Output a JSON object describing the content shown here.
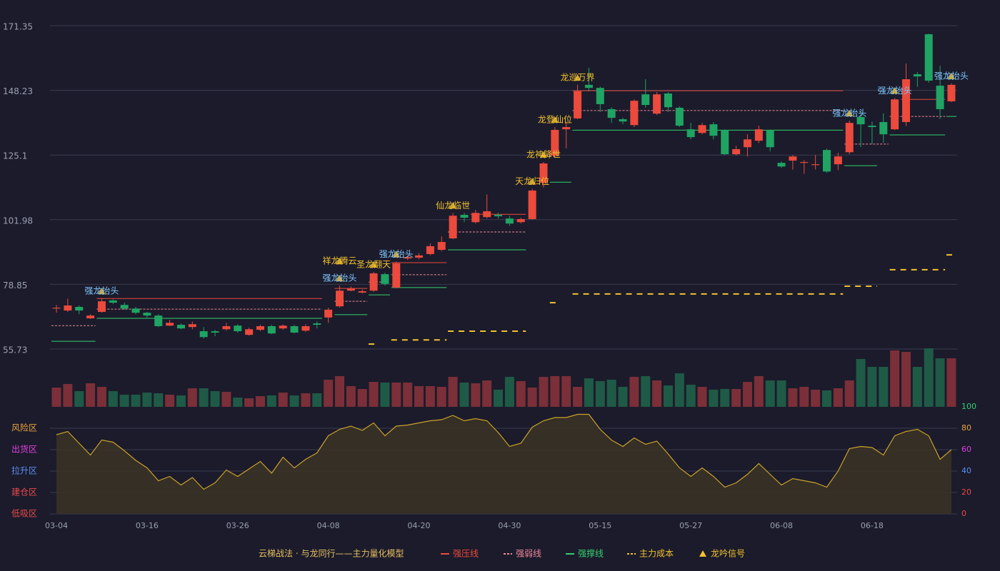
{
  "chart_data": [
    {
      "type": "candlestick",
      "ylim": [
        55.73,
        171.35
      ],
      "yticks": [
        55.73,
        78.85,
        101.98,
        125.1,
        148.23,
        171.35
      ],
      "grid": true,
      "up_color": "#eb4a3d",
      "down_color": "#1fa463",
      "caption": "云梯战法 · 与龙同行——主力量化模型",
      "ohlc": [
        [
          70.2,
          71.5,
          68.7,
          70.5
        ],
        [
          69.5,
          73.8,
          69.0,
          71.3
        ],
        [
          70.8,
          71.3,
          68.2,
          69.5
        ],
        [
          66.7,
          68.2,
          66.5,
          67.7
        ],
        [
          69.0,
          73.8,
          68.7,
          72.8
        ],
        [
          73.1,
          73.5,
          71.8,
          72.3
        ],
        [
          71.5,
          72.3,
          69.8,
          70.2
        ],
        [
          70.2,
          70.8,
          68.2,
          68.7
        ],
        [
          68.7,
          69.0,
          66.9,
          67.7
        ],
        [
          67.7,
          68.2,
          63.6,
          63.9
        ],
        [
          64.1,
          66.2,
          63.9,
          65.1
        ],
        [
          64.4,
          64.9,
          62.8,
          63.1
        ],
        [
          63.6,
          65.6,
          62.8,
          64.6
        ],
        [
          62.1,
          63.6,
          59.5,
          60.0
        ],
        [
          62.1,
          62.6,
          60.3,
          61.6
        ],
        [
          62.8,
          65.1,
          62.3,
          63.9
        ],
        [
          64.1,
          64.6,
          61.6,
          62.1
        ],
        [
          60.8,
          63.4,
          60.5,
          62.8
        ],
        [
          62.6,
          64.4,
          62.1,
          63.9
        ],
        [
          63.9,
          64.4,
          61.0,
          61.3
        ],
        [
          63.1,
          64.6,
          62.6,
          64.1
        ],
        [
          63.9,
          64.4,
          61.3,
          61.6
        ],
        [
          62.3,
          64.6,
          61.8,
          63.9
        ],
        [
          64.9,
          65.6,
          63.1,
          64.4
        ],
        [
          67.0,
          70.5,
          65.1,
          69.8
        ],
        [
          71.0,
          78.4,
          70.5,
          76.6
        ],
        [
          76.6,
          78.1,
          76.4,
          77.4
        ],
        [
          75.9,
          77.0,
          75.6,
          76.4
        ],
        [
          76.6,
          83.3,
          76.1,
          82.8
        ],
        [
          82.5,
          83.0,
          78.4,
          79.0
        ],
        [
          77.7,
          87.0,
          77.4,
          86.4
        ],
        [
          88.1,
          89.2,
          87.6,
          88.6
        ],
        [
          88.4,
          90.0,
          87.8,
          89.2
        ],
        [
          89.7,
          93.5,
          89.2,
          92.5
        ],
        [
          91.2,
          96.0,
          90.7,
          94.0
        ],
        [
          95.3,
          104.4,
          95.0,
          103.4
        ],
        [
          103.7,
          104.4,
          101.1,
          102.7
        ],
        [
          101.1,
          105.5,
          100.6,
          104.4
        ],
        [
          102.9,
          111.0,
          102.4,
          105.0
        ],
        [
          103.7,
          104.4,
          102.4,
          103.2
        ],
        [
          102.4,
          103.4,
          99.8,
          100.6
        ],
        [
          101.1,
          102.7,
          100.6,
          102.2
        ],
        [
          102.2,
          113.0,
          102.0,
          112.4
        ],
        [
          115.2,
          122.6,
          113.5,
          122.1
        ],
        [
          124.9,
          135.1,
          124.3,
          134.1
        ],
        [
          134.3,
          137.0,
          127.5,
          135.1
        ],
        [
          138.2,
          150.2,
          137.9,
          147.9
        ],
        [
          150.2,
          156.3,
          147.9,
          149.1
        ],
        [
          149.1,
          149.6,
          140.5,
          143.3
        ],
        [
          141.5,
          142.2,
          136.6,
          138.4
        ],
        [
          137.9,
          138.4,
          136.1,
          137.1
        ],
        [
          135.8,
          145.0,
          135.1,
          144.5
        ],
        [
          146.8,
          152.2,
          142.0,
          143.0
        ],
        [
          139.9,
          147.6,
          139.4,
          146.8
        ],
        [
          147.1,
          147.6,
          140.5,
          142.2
        ],
        [
          142.0,
          142.5,
          135.1,
          135.6
        ],
        [
          134.3,
          136.6,
          130.7,
          131.5
        ],
        [
          133.0,
          136.6,
          132.5,
          135.8
        ],
        [
          136.1,
          136.9,
          130.7,
          132.0
        ],
        [
          134.0,
          134.3,
          125.1,
          125.4
        ],
        [
          125.4,
          128.4,
          124.9,
          127.2
        ],
        [
          127.9,
          132.5,
          124.6,
          130.7
        ],
        [
          130.2,
          135.6,
          129.4,
          134.3
        ],
        [
          134.0,
          134.3,
          126.4,
          127.9
        ],
        [
          122.3,
          122.8,
          120.5,
          121.0
        ],
        [
          123.1,
          125.1,
          119.9,
          124.6
        ],
        [
          122.3,
          123.3,
          118.4,
          122.6
        ],
        [
          121.5,
          125.1,
          119.9,
          121.8
        ],
        [
          126.9,
          127.4,
          118.7,
          119.2
        ],
        [
          121.8,
          125.9,
          119.7,
          124.6
        ],
        [
          126.1,
          137.4,
          125.4,
          136.6
        ],
        [
          138.7,
          141.0,
          128.0,
          136.1
        ],
        [
          135.6,
          137.0,
          129.0,
          135.1
        ],
        [
          136.9,
          140.0,
          129.5,
          132.5
        ],
        [
          134.3,
          145.5,
          134.0,
          145.0
        ],
        [
          136.9,
          157.8,
          135.5,
          152.2
        ],
        [
          154.0,
          154.8,
          149.5,
          153.2
        ],
        [
          168.3,
          168.5,
          151.0,
          151.7
        ],
        [
          149.9,
          157.0,
          138.0,
          141.5
        ],
        [
          144.3,
          150.7,
          144.0,
          150.2
        ]
      ],
      "levels": [
        {
          "name": "强压线",
          "color": "#eb4a3d",
          "dash": false,
          "segments": [
            [
              4,
              23,
              73.8
            ],
            [
              25,
              27,
              77.4
            ],
            [
              30,
              34,
              86.6
            ],
            [
              37,
              41,
              103.9
            ],
            [
              46,
              69,
              148.1
            ],
            [
              75,
              78,
              145.0
            ]
          ]
        },
        {
          "name": "强弱线",
          "color": "#f08a9a",
          "dash": true,
          "segments": [
            [
              0,
              3,
              64.1
            ],
            [
              4,
              23,
              70.0
            ],
            [
              25,
              27,
              72.8
            ],
            [
              28,
              29,
              79.7
            ],
            [
              30,
              34,
              82.3
            ],
            [
              35,
              41,
              97.6
            ],
            [
              43,
              44,
              124.9
            ],
            [
              46,
              69,
              141.0
            ],
            [
              70,
              73,
              129.0
            ],
            [
              74,
              78,
              138.9
            ]
          ]
        },
        {
          "name": "强撑线",
          "color": "#35d06e",
          "dash": false,
          "segments": [
            [
              0,
              3,
              58.5
            ],
            [
              4,
              23,
              66.7
            ],
            [
              25,
              27,
              68.0
            ],
            [
              28,
              29,
              75.1
            ],
            [
              30,
              34,
              77.7
            ],
            [
              35,
              41,
              91.2
            ],
            [
              44,
              45,
              115.4
            ],
            [
              46,
              69,
              134.0
            ],
            [
              70,
              72,
              121.3
            ],
            [
              74,
              78,
              132.3
            ],
            [
              79,
              79,
              138.9
            ]
          ]
        },
        {
          "name": "主力成本",
          "color": "#f2c12e",
          "dash": true,
          "segments": [
            [
              28,
              28,
              57.5
            ],
            [
              30,
              34,
              59.0
            ],
            [
              35,
              41,
              62.1
            ],
            [
              44,
              44,
              72.3
            ],
            [
              46,
              69,
              75.4
            ],
            [
              70,
              72,
              78.2
            ],
            [
              74,
              78,
              84.1
            ],
            [
              79,
              79,
              89.4
            ]
          ]
        }
      ],
      "signals": {
        "name": "龙吟信号",
        "color": "#f2c12e",
        "items": [
          {
            "index": 4,
            "label": "强龙抬头",
            "color": "#7fc8ff"
          },
          {
            "index": 25,
            "label": "强龙抬头",
            "color": "#7fc8ff"
          },
          {
            "index": 25,
            "label": "祥龙腾云",
            "color": "#f2c12e"
          },
          {
            "index": 28,
            "label": "圣龙翻天",
            "color": "#f2c12e"
          },
          {
            "index": 30,
            "label": "强龙抬头",
            "color": "#7fc8ff"
          },
          {
            "index": 35,
            "label": "仙龙临世",
            "color": "#f2c12e"
          },
          {
            "index": 42,
            "label": "天龙归位",
            "color": "#f2c12e"
          },
          {
            "index": 43,
            "label": "龙神降世",
            "color": "#f2c12e"
          },
          {
            "index": 44,
            "label": "龙登仙位",
            "color": "#f2c12e"
          },
          {
            "index": 46,
            "label": "龙巡万界",
            "color": "#f2c12e"
          },
          {
            "index": 70,
            "label": "强龙抬头",
            "color": "#7fc8ff"
          },
          {
            "index": 74,
            "label": "强龙抬头",
            "color": "#7fc8ff"
          },
          {
            "index": 79,
            "label": "强龙抬头",
            "color": "#7fc8ff"
          }
        ]
      }
    },
    {
      "type": "bar",
      "ylim": [
        0,
        82
      ],
      "up_color": "#7b2f38",
      "down_color": "#1f5a46",
      "values": [
        27,
        32,
        22,
        33,
        28,
        22,
        17,
        17,
        20,
        19,
        17,
        16,
        26,
        26,
        22,
        21,
        13,
        12,
        15,
        16,
        20,
        16,
        19,
        19,
        38,
        43,
        29,
        25,
        35,
        34,
        34,
        34,
        29,
        29,
        28,
        42,
        34,
        33,
        37,
        24,
        42,
        36,
        27,
        42,
        43,
        43,
        28,
        40,
        36,
        38,
        28,
        42,
        43,
        37,
        30,
        47,
        31,
        28,
        24,
        25,
        25,
        35,
        43,
        37,
        37,
        26,
        28,
        24,
        23,
        26,
        37,
        67,
        56,
        56,
        79,
        77,
        56,
        82,
        68,
        68
      ]
    },
    {
      "type": "line",
      "color": "#c9a227",
      "area_color": "#3a3226",
      "ylim": [
        0,
        100
      ],
      "yticks": [
        {
          "value": 0,
          "label": "低吸区",
          "color": "#e84a4a"
        },
        {
          "value": 20,
          "label": "建仓区",
          "color": "#e84a4a"
        },
        {
          "value": 40,
          "label": "拉升区",
          "color": "#5b8ff0"
        },
        {
          "value": 60,
          "label": "出货区",
          "color": "#e040e0"
        },
        {
          "value": 80,
          "label": "风险区",
          "color": "#e8a33d"
        }
      ],
      "y2lim": [
        0,
        100
      ],
      "y2ticks": [
        0,
        20,
        40,
        60,
        80,
        100
      ],
      "y2tick_colors": [
        "#e84a4a",
        "#e84a4a",
        "#5b8ff0",
        "#e040e0",
        "#e8a33d",
        "#35d06e"
      ],
      "categories": [
        "03-04",
        null,
        null,
        null,
        null,
        null,
        null,
        null,
        "03-16",
        null,
        null,
        null,
        null,
        null,
        null,
        null,
        "03-26",
        null,
        null,
        null,
        null,
        null,
        null,
        null,
        "04-08",
        null,
        null,
        null,
        null,
        null,
        null,
        null,
        "04-20",
        null,
        null,
        null,
        null,
        null,
        null,
        null,
        "04-30",
        null,
        null,
        null,
        null,
        null,
        null,
        null,
        "05-15",
        null,
        null,
        null,
        null,
        null,
        null,
        null,
        "05-27",
        null,
        null,
        null,
        null,
        null,
        null,
        null,
        "06-08",
        null,
        null,
        null,
        null,
        null,
        null,
        null,
        "06-18",
        null,
        null,
        null,
        null,
        null,
        null,
        null
      ],
      "values": [
        74,
        77,
        66,
        55,
        69,
        67,
        59,
        50,
        43,
        31,
        35,
        27,
        34,
        23,
        29,
        41,
        35,
        42,
        49,
        38,
        53,
        43,
        51,
        57,
        73,
        79,
        82,
        78,
        85,
        73,
        82,
        83,
        85,
        87,
        88,
        92,
        87,
        89,
        87,
        76,
        63,
        66,
        81,
        87,
        90,
        90,
        93,
        93,
        79,
        69,
        63,
        71,
        65,
        68,
        56,
        43,
        35,
        43,
        35,
        25,
        29,
        37,
        47,
        37,
        27,
        33,
        31,
        29,
        25,
        40,
        61,
        63,
        62,
        55,
        73,
        77,
        79,
        73,
        51,
        60
      ]
    }
  ]
}
